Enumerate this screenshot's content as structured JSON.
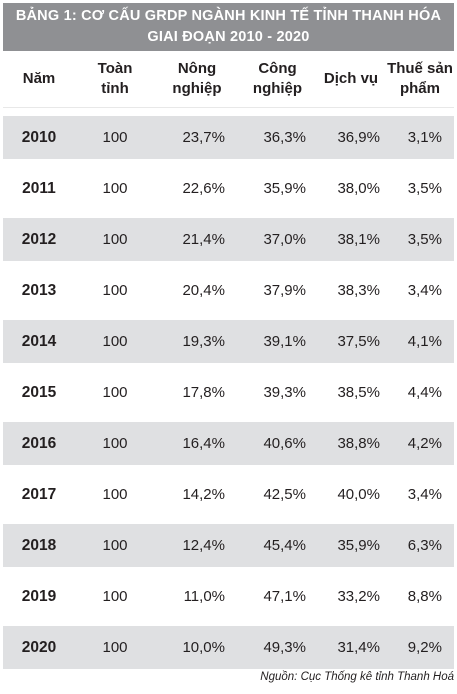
{
  "title": {
    "line1": "BẢNG 1: CƠ CẤU GRDP NGÀNH KINH TẾ TỈNH THANH HÓA",
    "line2": "GIAI ĐOẠN 2010 - 2020"
  },
  "headers": {
    "year": "Năm",
    "total": [
      "Toàn",
      "tỉnh"
    ],
    "agri": [
      "Nông",
      "nghiệp"
    ],
    "industry": [
      "Công",
      "nghiệp"
    ],
    "service": "Dịch vụ",
    "tax": [
      "Thuế sản",
      "phẩm"
    ]
  },
  "rows": [
    {
      "year": "2010",
      "total": "100",
      "agri": "23,7%",
      "industry": "36,3%",
      "service": "36,9%",
      "tax": "3,1%"
    },
    {
      "year": "2011",
      "total": "100",
      "agri": "22,6%",
      "industry": "35,9%",
      "service": "38,0%",
      "tax": "3,5%"
    },
    {
      "year": "2012",
      "total": "100",
      "agri": "21,4%",
      "industry": "37,0%",
      "service": "38,1%",
      "tax": "3,5%"
    },
    {
      "year": "2013",
      "total": "100",
      "agri": "20,4%",
      "industry": "37,9%",
      "service": "38,3%",
      "tax": "3,4%"
    },
    {
      "year": "2014",
      "total": "100",
      "agri": "19,3%",
      "industry": "39,1%",
      "service": "37,5%",
      "tax": "4,1%"
    },
    {
      "year": "2015",
      "total": "100",
      "agri": "17,8%",
      "industry": "39,3%",
      "service": "38,5%",
      "tax": "4,4%"
    },
    {
      "year": "2016",
      "total": "100",
      "agri": "16,4%",
      "industry": "40,6%",
      "service": "38,8%",
      "tax": "4,2%"
    },
    {
      "year": "2017",
      "total": "100",
      "agri": "14,2%",
      "industry": "42,5%",
      "service": "40,0%",
      "tax": "3,4%"
    },
    {
      "year": "2018",
      "total": "100",
      "agri": "12,4%",
      "industry": "45,4%",
      "service": "35,9%",
      "tax": "6,3%"
    },
    {
      "year": "2019",
      "total": "100",
      "agri": "11,0%",
      "industry": "47,1%",
      "service": "33,2%",
      "tax": "8,8%"
    },
    {
      "year": "2020",
      "total": "100",
      "agri": "10,0%",
      "industry": "49,3%",
      "service": "31,4%",
      "tax": "9,2%"
    }
  ],
  "source": "Nguồn: Cục Thống kê tỉnh Thanh Hoá",
  "colors": {
    "title_bg": "#8f9093",
    "row_shade": "#dfe0e2"
  }
}
